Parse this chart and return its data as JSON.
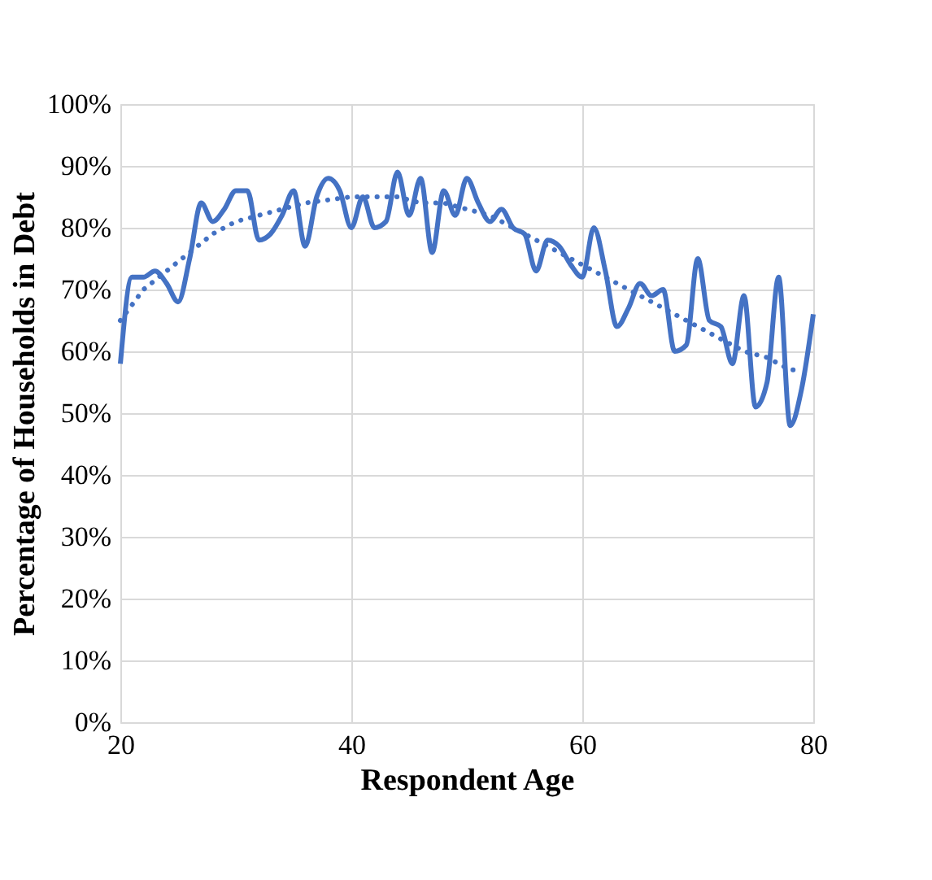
{
  "chart_data": {
    "type": "line",
    "xlabel": "Respondent Age",
    "ylabel": "Percentage of Households in Debt",
    "xlim": [
      20,
      80
    ],
    "xticks": [
      20,
      40,
      60,
      80
    ],
    "ylim": [
      0,
      100
    ],
    "yticks": [
      {
        "value": 0,
        "label": "0%"
      },
      {
        "value": 10,
        "label": "10%"
      },
      {
        "value": 20,
        "label": "20%"
      },
      {
        "value": 30,
        "label": "30%"
      },
      {
        "value": 40,
        "label": "40%"
      },
      {
        "value": 50,
        "label": "50%"
      },
      {
        "value": 60,
        "label": "60%"
      },
      {
        "value": 70,
        "label": "70%"
      },
      {
        "value": 80,
        "label": "80%"
      },
      {
        "value": 90,
        "label": "90%"
      },
      {
        "value": 100,
        "label": "100%"
      }
    ],
    "grid": true,
    "series": [
      {
        "color": "#4472c4",
        "line_style": "solid",
        "x": [
          20,
          21,
          22,
          23,
          24,
          25,
          26,
          27,
          28,
          29,
          30,
          31,
          32,
          33,
          34,
          35,
          36,
          37,
          38,
          39,
          40,
          41,
          42,
          43,
          44,
          45,
          46,
          47,
          48,
          49,
          50,
          51,
          52,
          53,
          54,
          55,
          56,
          57,
          58,
          59,
          60,
          61,
          62,
          63,
          64,
          65,
          66,
          67,
          68,
          69,
          70,
          71,
          72,
          73,
          74,
          75,
          76,
          77,
          78,
          79,
          80
        ],
        "values": [
          58,
          72,
          72,
          73,
          71,
          68,
          75,
          84,
          81,
          83,
          86,
          86,
          78,
          79,
          82,
          86,
          77,
          85,
          88,
          86,
          80,
          85,
          80,
          81,
          89,
          82,
          88,
          76,
          86,
          82,
          88,
          84,
          81,
          83,
          80,
          79,
          73,
          78,
          77,
          74,
          72,
          80,
          73,
          64,
          67,
          71,
          69,
          70,
          60,
          61,
          75,
          65,
          64,
          58,
          69,
          51,
          55,
          72,
          48,
          54,
          66
        ]
      },
      {
        "color": "#4472c4",
        "line_style": "dotted",
        "x": [
          20,
          22,
          24,
          26,
          28,
          30,
          32,
          34,
          36,
          38,
          40,
          42,
          44,
          46,
          48,
          50,
          52,
          54,
          56,
          58,
          60,
          62,
          64,
          66,
          68,
          70,
          72,
          74,
          76,
          78,
          79
        ],
        "values": [
          65,
          70,
          73,
          76,
          79,
          81,
          82,
          83,
          84,
          84.5,
          85,
          85,
          85,
          84,
          84,
          83,
          82,
          80,
          78,
          76,
          74,
          72,
          70,
          68,
          66,
          64,
          62,
          60,
          59,
          57,
          57
        ]
      }
    ]
  }
}
